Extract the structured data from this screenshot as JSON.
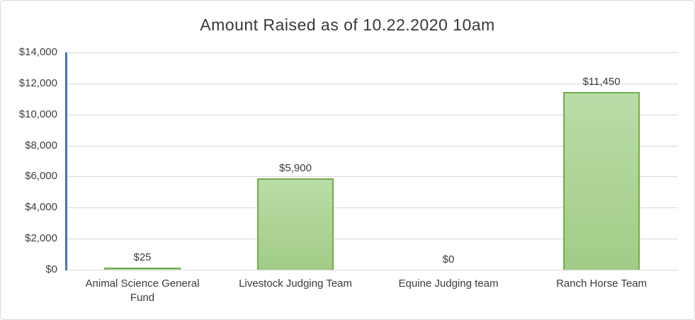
{
  "chart_data": {
    "type": "bar",
    "title": "Amount Raised as of 10.22.2020 10am",
    "categories": [
      "Animal Science General Fund",
      "Livestock Judging Team",
      "Equine Judging team",
      "Ranch Horse Team"
    ],
    "values": [
      25,
      5900,
      0,
      11450
    ],
    "value_labels": [
      "$25",
      "$5,900",
      "$0",
      "$11,450"
    ],
    "y_tick_labels": [
      "$14,000",
      "$12,000",
      "$10,000",
      "$8,000",
      "$6,000",
      "$4,000",
      "$2,000",
      "$0"
    ],
    "ylim": [
      0,
      14000
    ],
    "y_step": 2000,
    "xlabel": "",
    "ylabel": "",
    "grid": "on",
    "legend": "none"
  },
  "colors": {
    "bar_fill_top": "#b9dda7",
    "bar_fill_bottom": "#a2cb87",
    "bar_border": "#70ad47",
    "y_axis_line": "#4472c4",
    "gridline": "#d9d9d9",
    "chart_border": "#d9d9d9",
    "text": "#3f3f3f",
    "background": "#ffffff"
  }
}
